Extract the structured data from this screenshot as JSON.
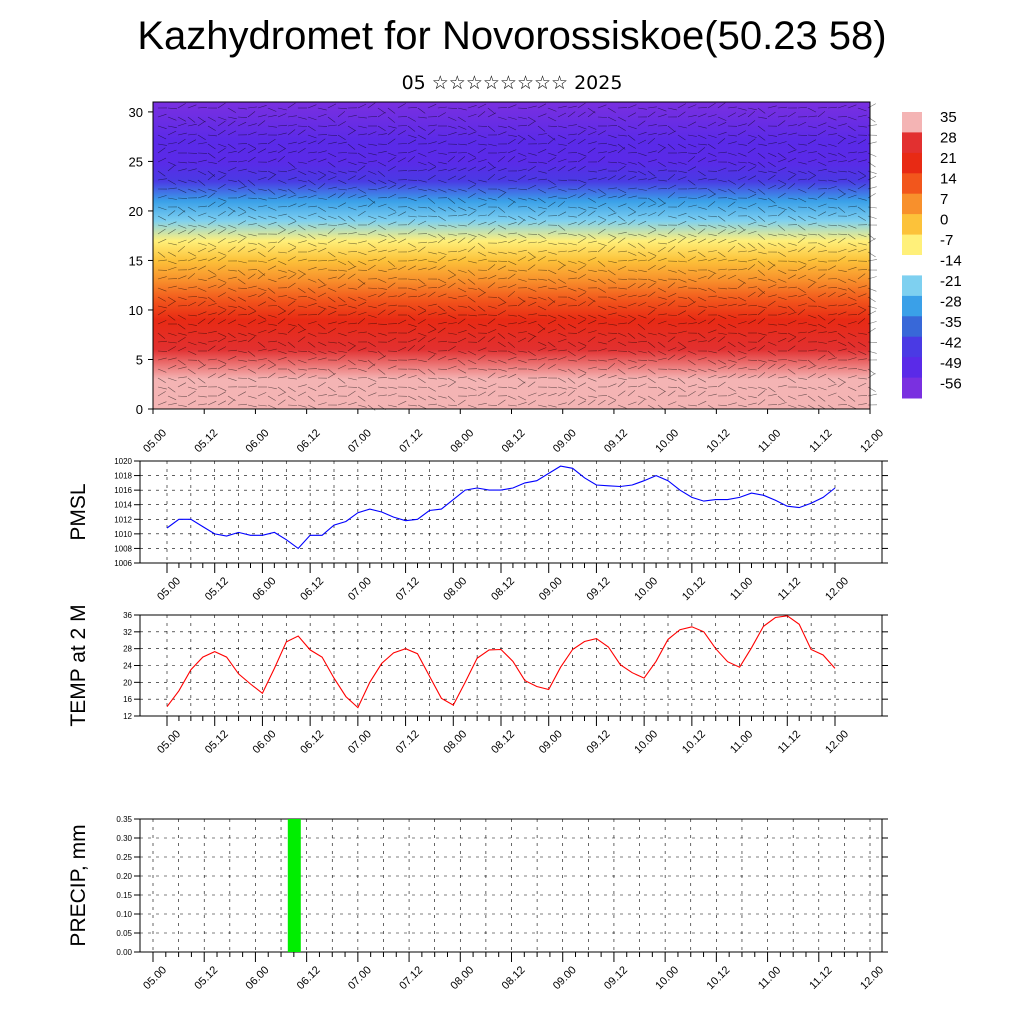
{
  "header": {
    "title": "Kazhydromet for Novorossiskoe(50.23 58)",
    "subtitle": "05 ☆☆☆☆☆☆☆☆ 2025"
  },
  "time_labels": [
    "05.00",
    "05.12",
    "06.00",
    "06.12",
    "07.00",
    "07.12",
    "08.00",
    "08.12",
    "09.00",
    "09.12",
    "10.00",
    "10.12",
    "11.00",
    "11.12",
    "12.00"
  ],
  "chart_data": [
    {
      "type": "heatmap",
      "title": "",
      "ylim": [
        0,
        31
      ],
      "yticks": [
        0,
        5,
        10,
        15,
        20,
        25,
        30
      ],
      "x_categories": [
        "05.00",
        "05.12",
        "06.00",
        "06.12",
        "07.00",
        "07.12",
        "08.00",
        "08.12",
        "09.00",
        "09.12",
        "10.00",
        "10.12",
        "11.00",
        "11.12",
        "12.00"
      ],
      "colorbar_labels": [
        "35",
        "28",
        "21",
        "14",
        "7",
        "0",
        "-7",
        "-14",
        "-21",
        "-28",
        "-35",
        "-42",
        "-49",
        "-56"
      ],
      "colorbar_colors": [
        "#f4b4b4",
        "#e23030",
        "#e82a14",
        "#f2561c",
        "#f8902c",
        "#fcc23a",
        "#fff07a",
        "#ffffff",
        "#7ed0f0",
        "#3aa0e8",
        "#3868d8",
        "#4a3ae4",
        "#5a2ae8",
        "#7a30e0"
      ],
      "temperature_profile": [
        {
          "height": 0,
          "value": 33
        },
        {
          "height": 3,
          "value": 28
        },
        {
          "height": 6,
          "value": 22
        },
        {
          "height": 9,
          "value": 14
        },
        {
          "height": 11,
          "value": 7
        },
        {
          "height": 13,
          "value": 1
        },
        {
          "height": 15,
          "value": -6
        },
        {
          "height": 17,
          "value": -14
        },
        {
          "height": 19,
          "value": -24
        },
        {
          "height": 21,
          "value": -33
        },
        {
          "height": 23,
          "value": -43
        },
        {
          "height": 25,
          "value": -50
        },
        {
          "height": 27,
          "value": -54
        },
        {
          "height": 31,
          "value": -58
        }
      ]
    },
    {
      "type": "line",
      "ylabel": "PMSL",
      "ylim": [
        1006,
        1020
      ],
      "yticks": [
        1006,
        1008,
        1010,
        1012,
        1014,
        1016,
        1018,
        1020
      ],
      "color": "#0000ff",
      "x_hours": [
        0,
        3,
        6,
        9,
        12,
        15,
        18,
        21,
        24,
        27,
        30,
        33,
        36,
        39,
        42,
        45,
        48,
        51,
        54,
        57,
        60,
        63,
        66,
        69,
        72,
        75,
        78,
        81,
        84,
        87,
        90,
        93,
        96,
        99,
        102,
        105,
        108,
        111,
        114,
        117,
        120,
        123,
        126,
        129,
        132,
        135,
        138,
        141,
        144,
        147,
        150,
        153,
        156,
        159,
        162,
        165,
        168
      ],
      "values": [
        1010.8,
        1012.0,
        1012.0,
        1011.0,
        1010.0,
        1009.7,
        1010.2,
        1009.8,
        1009.8,
        1010.2,
        1009.2,
        1008.0,
        1009.8,
        1009.8,
        1011.2,
        1011.7,
        1012.9,
        1013.4,
        1013.0,
        1012.3,
        1011.8,
        1012.0,
        1013.2,
        1013.4,
        1014.7,
        1016.0,
        1016.3,
        1016.0,
        1016.0,
        1016.3,
        1017.0,
        1017.3,
        1018.3,
        1019.3,
        1019.0,
        1017.7,
        1016.7,
        1016.6,
        1016.5,
        1016.7,
        1017.3,
        1018.0,
        1017.3,
        1016.0,
        1015.0,
        1014.5,
        1014.7,
        1014.7,
        1015.0,
        1015.6,
        1015.3,
        1014.6,
        1013.8,
        1013.6,
        1014.2,
        1015.0,
        1016.3
      ]
    },
    {
      "type": "line",
      "ylabel": "TEMP at 2 M",
      "ylim": [
        12,
        36
      ],
      "yticks": [
        12,
        16,
        20,
        24,
        28,
        32,
        36
      ],
      "color": "#ff0000",
      "x_hours": [
        0,
        3,
        6,
        9,
        12,
        15,
        18,
        21,
        24,
        27,
        30,
        33,
        36,
        39,
        42,
        45,
        48,
        51,
        54,
        57,
        60,
        63,
        66,
        69,
        72,
        75,
        78,
        81,
        84,
        87,
        90,
        93,
        96,
        99,
        102,
        105,
        108,
        111,
        114,
        117,
        120,
        123,
        126,
        129,
        132,
        135,
        138,
        141,
        144,
        147,
        150,
        153,
        156,
        159,
        162,
        165,
        168
      ],
      "values": [
        14.2,
        18.0,
        23.0,
        26.0,
        27.3,
        26.0,
        22.0,
        19.6,
        17.4,
        23.3,
        29.6,
        31.0,
        27.7,
        26.0,
        21.0,
        16.6,
        14.0,
        20.0,
        24.5,
        27.0,
        28.0,
        26.8,
        21.5,
        16.2,
        14.6,
        20.0,
        25.7,
        27.7,
        27.8,
        25.0,
        20.4,
        19.0,
        18.3,
        23.6,
        27.8,
        29.7,
        30.4,
        28.4,
        24.2,
        22.3,
        21.0,
        25.0,
        30.2,
        32.5,
        33.2,
        32.0,
        28.0,
        24.9,
        23.6,
        28.2,
        33.3,
        35.4,
        35.8,
        33.8,
        27.8,
        26.5,
        23.3
      ]
    },
    {
      "type": "bar",
      "ylabel": "PRECIP, mm",
      "ylim": [
        0,
        0.35
      ],
      "yticks": [
        "0.00",
        "0.05",
        "0.10",
        "0.15",
        "0.20",
        "0.25",
        "0.30",
        "0.35"
      ],
      "color": "#00ee00",
      "x_hours": [
        33
      ],
      "values": [
        0.35
      ]
    }
  ]
}
